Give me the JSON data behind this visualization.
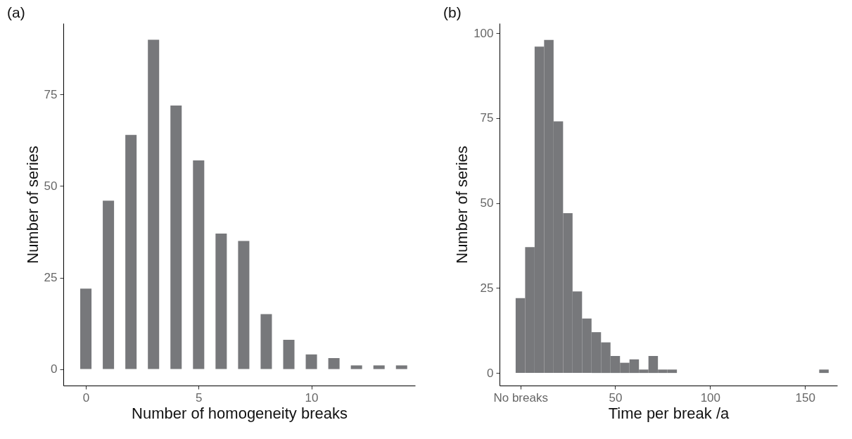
{
  "chart_data": [
    {
      "type": "bar",
      "title": "(a)",
      "xlabel": "Number of homogeneity breaks",
      "ylabel": "Number of series",
      "color": "#77787b",
      "x": [
        0,
        1,
        2,
        3,
        4,
        5,
        6,
        7,
        8,
        9,
        10,
        11,
        12,
        13,
        14
      ],
      "values": [
        22,
        46,
        64,
        90,
        72,
        57,
        37,
        35,
        15,
        8,
        4,
        3,
        1,
        1,
        1
      ],
      "xlim": [
        -1,
        14.6
      ],
      "xticks": [
        0,
        5,
        10
      ],
      "ylim": [
        -4.5,
        94.5
      ],
      "yticks": [
        0,
        25,
        50,
        75
      ]
    },
    {
      "type": "histogram",
      "title": "(b)",
      "xlabel": "Time per break /a",
      "ylabel": "Number of series",
      "color": "#77787b",
      "bins": [
        -2.5,
        2.5,
        7.5,
        12.5,
        17.5,
        22.5,
        27.5,
        32.5,
        37.5,
        42.5,
        47.5,
        52.5,
        57.5,
        62.5,
        67.5,
        72.5,
        77.5,
        82.5,
        87.5,
        92.5,
        97.5,
        102.5,
        107.5,
        112.5,
        117.5,
        122.5,
        127.5,
        132.5,
        137.5,
        142.5,
        147.5,
        152.5,
        157.5,
        162.5
      ],
      "values": [
        22,
        37,
        96,
        98,
        74,
        47,
        24,
        16,
        12,
        9,
        5,
        3,
        4,
        1,
        5,
        1,
        1,
        0,
        0,
        0,
        0,
        0,
        0,
        0,
        0,
        0,
        0,
        0,
        0,
        0,
        0,
        0,
        1
      ],
      "xlim": [
        -11,
        167
      ],
      "xticks": [
        {
          "value": 0,
          "label": "No breaks"
        },
        50,
        100,
        150
      ],
      "ylim": [
        -3.7,
        102.9
      ],
      "yticks": [
        0,
        25,
        50,
        75,
        100
      ]
    }
  ]
}
